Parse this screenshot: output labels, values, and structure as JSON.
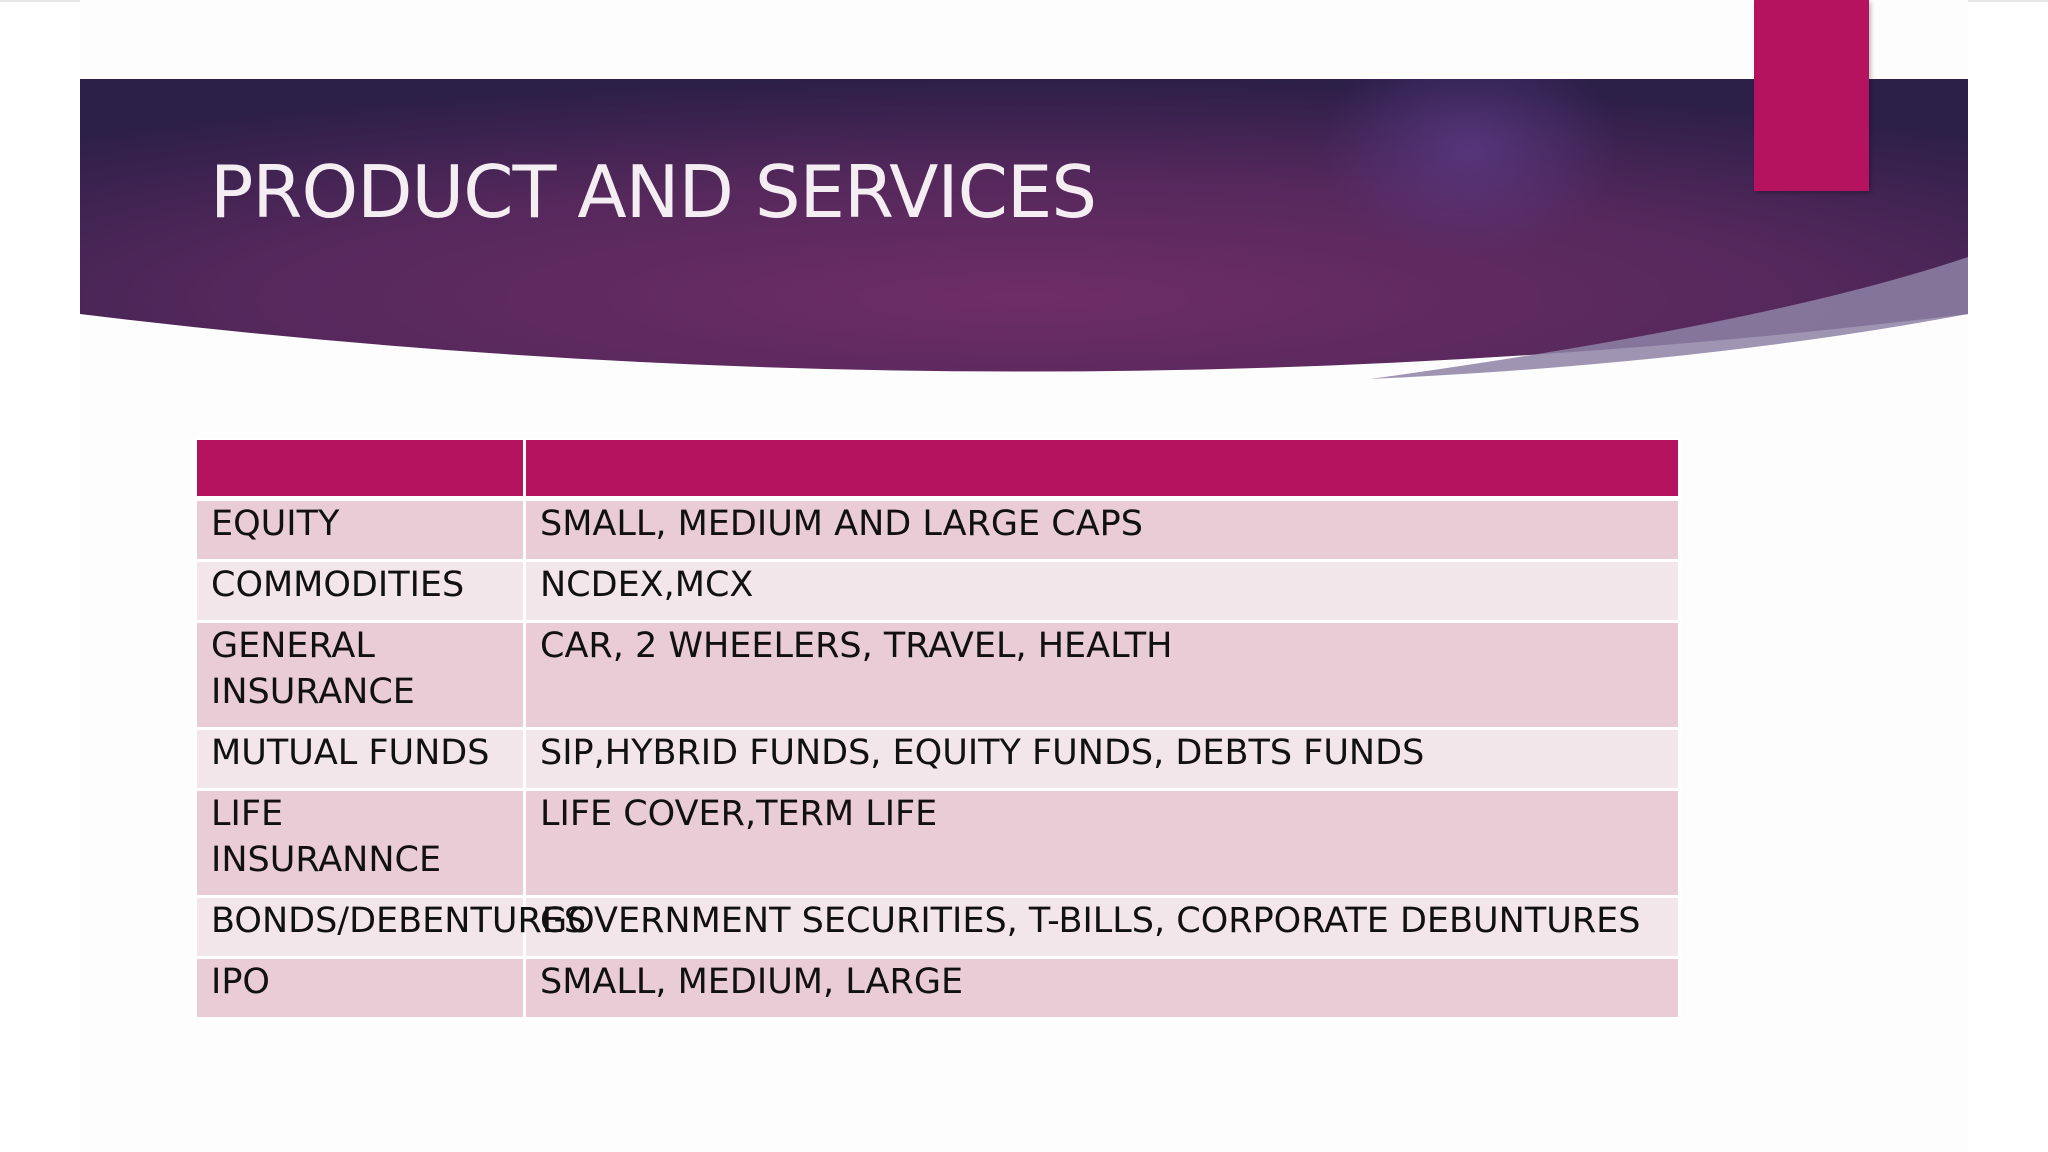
{
  "slide": {
    "title": "PRODUCT AND SERVICES"
  },
  "colors": {
    "header_dark": "#2f1f4a",
    "header_mid": "#6a2c63",
    "accent": "#b5125f",
    "row_odd": "#e9ccd6",
    "row_even": "#f3e6eb"
  },
  "table": {
    "headers": [
      "",
      ""
    ],
    "rows": [
      {
        "category": "EQUITY",
        "details": "SMALL, MEDIUM AND LARGE CAPS"
      },
      {
        "category": "COMMODITIES",
        "details": "NCDEX,MCX"
      },
      {
        "category": "GENERAL INSURANCE",
        "details": "CAR, 2 WHEELERS, TRAVEL, HEALTH"
      },
      {
        "category": "MUTUAL FUNDS",
        "details": "SIP,HYBRID FUNDS, EQUITY FUNDS, DEBTS FUNDS"
      },
      {
        "category": "LIFE INSURANNCE",
        "details": "LIFE COVER,TERM LIFE"
      },
      {
        "category": "BONDS/DEBENTURES",
        "details": "GOVERNMENT SECURITIES, T-BILLS, CORPORATE DEBUNTURES"
      },
      {
        "category": "IPO",
        "details": "SMALL, MEDIUM, LARGE"
      }
    ]
  }
}
